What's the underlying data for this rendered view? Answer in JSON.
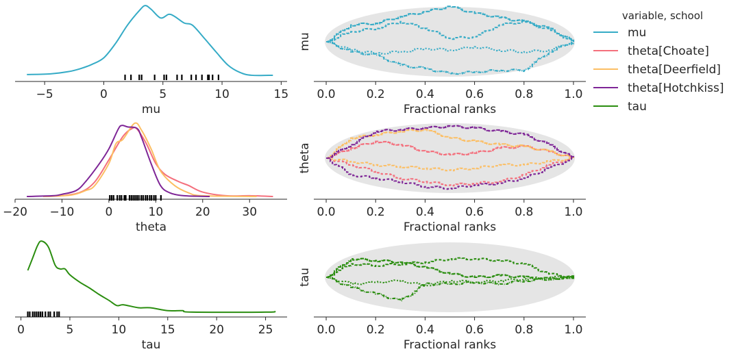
{
  "chart_data": [
    {
      "type": "line",
      "subtype": "kde",
      "xlabel": "mu",
      "xlim": [
        -7.5,
        15.5
      ],
      "xticks": [
        -5,
        0,
        5,
        10,
        15
      ],
      "xtick_labels": [
        "−5",
        "0",
        "5",
        "10",
        "15"
      ],
      "series": [
        {
          "name": "mu",
          "color": "#35abc6",
          "points": [
            [
              -6.5,
              0.02
            ],
            [
              -4.5,
              0.03
            ],
            [
              -3,
              0.06
            ],
            [
              -2,
              0.1
            ],
            [
              -1,
              0.16
            ],
            [
              0,
              0.25
            ],
            [
              1,
              0.45
            ],
            [
              2,
              0.7
            ],
            [
              3,
              0.9
            ],
            [
              3.5,
              0.97
            ],
            [
              4,
              0.92
            ],
            [
              4.8,
              0.8
            ],
            [
              5.5,
              0.85
            ],
            [
              6,
              0.82
            ],
            [
              6.8,
              0.73
            ],
            [
              7.5,
              0.7
            ],
            [
              8.5,
              0.52
            ],
            [
              9.5,
              0.33
            ],
            [
              10.5,
              0.15
            ],
            [
              11.5,
              0.05
            ],
            [
              12.5,
              0.01
            ],
            [
              14.3,
              0.01
            ]
          ]
        }
      ],
      "rug": [
        1.8,
        2.3,
        3.0,
        3.2,
        4.3,
        5.1,
        5.3,
        6.2,
        6.6,
        7.4,
        7.8,
        8.3,
        8.8,
        8.9,
        9.2,
        9.7
      ]
    },
    {
      "type": "line",
      "subtype": "kde",
      "xlabel": "theta",
      "xlim": [
        -20,
        38
      ],
      "xticks": [
        -20,
        -10,
        0,
        10,
        20,
        30
      ],
      "xtick_labels": [
        "−20",
        "−10",
        "0",
        "10",
        "20",
        "30"
      ],
      "series": [
        {
          "name": "theta[Choate]",
          "color": "#f46f7c",
          "points": [
            [
              -14,
              0
            ],
            [
              -10,
              0.01
            ],
            [
              -6,
              0.06
            ],
            [
              -3,
              0.2
            ],
            [
              0,
              0.5
            ],
            [
              3,
              0.82
            ],
            [
              5,
              0.93
            ],
            [
              6,
              0.92
            ],
            [
              8,
              0.72
            ],
            [
              10,
              0.45
            ],
            [
              12,
              0.3
            ],
            [
              15,
              0.2
            ],
            [
              17,
              0.15
            ],
            [
              20,
              0.06
            ],
            [
              25,
              0.01
            ],
            [
              30,
              0.01
            ],
            [
              35,
              0
            ]
          ]
        },
        {
          "name": "theta[Deerfield]",
          "color": "#fcbe63",
          "points": [
            [
              -14,
              0
            ],
            [
              -8,
              0.02
            ],
            [
              -5,
              0.08
            ],
            [
              -3,
              0.15
            ],
            [
              0,
              0.45
            ],
            [
              1.5,
              0.72
            ],
            [
              3,
              0.78
            ],
            [
              5.5,
              1.0
            ],
            [
              7,
              0.9
            ],
            [
              9,
              0.65
            ],
            [
              11,
              0.35
            ],
            [
              14,
              0.15
            ],
            [
              17,
              0.05
            ],
            [
              20,
              0.01
            ],
            [
              31.5,
              0
            ]
          ]
        },
        {
          "name": "theta[Hotchkiss]",
          "color": "#7e2596",
          "points": [
            [
              -17.5,
              0
            ],
            [
              -12,
              0.01
            ],
            [
              -10,
              0.03
            ],
            [
              -7,
              0.08
            ],
            [
              -5,
              0.2
            ],
            [
              -2,
              0.45
            ],
            [
              0,
              0.65
            ],
            [
              2,
              0.92
            ],
            [
              2.8,
              0.97
            ],
            [
              4,
              0.95
            ],
            [
              6,
              0.93
            ],
            [
              7,
              0.8
            ],
            [
              9,
              0.45
            ],
            [
              11,
              0.15
            ],
            [
              13,
              0.05
            ],
            [
              16,
              0.01
            ],
            [
              21.5,
              0
            ]
          ]
        }
      ],
      "rug": [
        0.2,
        0.6,
        1.0,
        1.8,
        2.3,
        2.7,
        3.3,
        3.6,
        4.4,
        4.8,
        5.2,
        5.6,
        6.0,
        6.4,
        6.9,
        7.3,
        7.8,
        8.2,
        8.7,
        9.1,
        9.6,
        10.0,
        11.1
      ]
    },
    {
      "type": "line",
      "subtype": "kde",
      "xlabel": "tau",
      "xlim": [
        -0.6,
        27.2
      ],
      "xticks": [
        0,
        5,
        10,
        15,
        20,
        25
      ],
      "xtick_labels": [
        "0",
        "5",
        "10",
        "15",
        "20",
        "25"
      ],
      "series": [
        {
          "name": "tau",
          "color": "#2a8d0f",
          "points": [
            [
              0.7,
              0.58
            ],
            [
              1.2,
              0.75
            ],
            [
              1.7,
              0.92
            ],
            [
              2.1,
              0.98
            ],
            [
              2.8,
              0.9
            ],
            [
              3.5,
              0.65
            ],
            [
              4,
              0.6
            ],
            [
              4.5,
              0.6
            ],
            [
              5,
              0.52
            ],
            [
              6,
              0.42
            ],
            [
              7,
              0.34
            ],
            [
              8,
              0.25
            ],
            [
              9,
              0.17
            ],
            [
              9.8,
              0.1
            ],
            [
              10.5,
              0.11
            ],
            [
              12,
              0.07
            ],
            [
              13.2,
              0.07
            ],
            [
              15,
              0.03
            ],
            [
              16.5,
              0.03
            ],
            [
              17.5,
              0.01
            ],
            [
              25,
              0.01
            ],
            [
              26,
              0.02
            ]
          ]
        }
      ],
      "rug": [
        0.7,
        0.9,
        1.2,
        1.4,
        1.6,
        1.8,
        2.0,
        2.2,
        2.5,
        2.8,
        3.0,
        3.4,
        3.7,
        3.9
      ]
    },
    {
      "type": "line",
      "subtype": "rank_ecdf",
      "xlabel": "Fractional ranks",
      "ylabel": "mu",
      "xlim": [
        -0.05,
        1.05
      ],
      "xticks": [
        0,
        0.2,
        0.4,
        0.6,
        0.8,
        1.0
      ],
      "xtick_labels": [
        "0.0",
        "0.2",
        "0.4",
        "0.6",
        "0.8",
        "1.0"
      ],
      "x": [
        0,
        0.1,
        0.2,
        0.3,
        0.4,
        0.5,
        0.6,
        0.7,
        0.8,
        0.9,
        1.0
      ],
      "series": [
        {
          "name": "mu",
          "color": "#35abc6",
          "chains": [
            [
              0,
              0.5,
              0.55,
              0.75,
              0.9,
              1.05,
              0.85,
              0.72,
              0.6,
              0.4,
              0
            ],
            [
              0,
              0.3,
              0.4,
              0.6,
              0.4,
              0.1,
              0.15,
              0.5,
              0.6,
              0.35,
              0
            ],
            [
              0,
              -0.25,
              -0.35,
              -0.3,
              -0.2,
              -0.25,
              -0.15,
              -0.25,
              -0.3,
              -0.25,
              0
            ],
            [
              0,
              -0.3,
              -0.4,
              -0.7,
              -0.8,
              -0.95,
              -0.9,
              -0.85,
              -0.85,
              -0.3,
              0
            ]
          ]
        }
      ]
    },
    {
      "type": "line",
      "subtype": "rank_ecdf",
      "xlabel": "Fractional ranks",
      "ylabel": "theta",
      "xlim": [
        -0.05,
        1.05
      ],
      "xticks": [
        0,
        0.2,
        0.4,
        0.6,
        0.8,
        1.0
      ],
      "xtick_labels": [
        "0.0",
        "0.2",
        "0.4",
        "0.6",
        "0.8",
        "1.0"
      ],
      "x": [
        0,
        0.1,
        0.2,
        0.3,
        0.4,
        0.5,
        0.6,
        0.7,
        0.8,
        0.9,
        1.0
      ],
      "series": [
        {
          "name": "theta[Choate]",
          "color": "#f46f7c",
          "chains": [
            [
              0,
              0.3,
              0.5,
              0.4,
              0.2,
              0.1,
              0.15,
              0.3,
              0.35,
              0.2,
              0
            ],
            [
              0,
              -0.2,
              -0.4,
              -0.6,
              -0.7,
              -0.8,
              -0.75,
              -0.7,
              -0.5,
              -0.2,
              0
            ]
          ]
        },
        {
          "name": "theta[Deerfield]",
          "color": "#fcbe63",
          "chains": [
            [
              0,
              0.6,
              0.7,
              0.8,
              0.85,
              0.6,
              0.5,
              0.4,
              0.35,
              0.2,
              0
            ],
            [
              0,
              -0.1,
              -0.2,
              -0.25,
              -0.3,
              -0.35,
              -0.3,
              -0.2,
              -0.2,
              -0.1,
              0
            ]
          ]
        },
        {
          "name": "theta[Hotchkiss]",
          "color": "#7e2596",
          "chains": [
            [
              0,
              0.4,
              0.8,
              0.85,
              0.9,
              0.95,
              0.9,
              0.8,
              0.7,
              0.4,
              0
            ],
            [
              0,
              -0.5,
              -0.6,
              -0.7,
              -0.85,
              -0.9,
              -0.8,
              -0.75,
              -0.6,
              -0.3,
              0
            ]
          ]
        }
      ]
    },
    {
      "type": "line",
      "subtype": "rank_ecdf",
      "xlabel": "Fractional ranks",
      "ylabel": "tau",
      "xlim": [
        -0.05,
        1.05
      ],
      "xticks": [
        0,
        0.2,
        0.4,
        0.6,
        0.8,
        1.0
      ],
      "xtick_labels": [
        "0.0",
        "0.2",
        "0.4",
        "0.6",
        "0.8",
        "1.0"
      ],
      "x": [
        0,
        0.1,
        0.2,
        0.3,
        0.4,
        0.5,
        0.6,
        0.7,
        0.8,
        0.9,
        1.0
      ],
      "series": [
        {
          "name": "tau",
          "color": "#2a8d0f",
          "chains": [
            [
              0,
              0.55,
              0.5,
              0.45,
              0.3,
              0.1,
              0.0,
              0.05,
              0.0,
              -0.05,
              0
            ],
            [
              0,
              0.4,
              0.35,
              0.4,
              0.45,
              0.55,
              0.55,
              0.5,
              0.4,
              0.1,
              0
            ],
            [
              0,
              -0.2,
              -0.15,
              -0.1,
              -0.25,
              -0.1,
              -0.15,
              -0.1,
              -0.05,
              0,
              0
            ],
            [
              0,
              -0.3,
              -0.5,
              -0.7,
              -0.2,
              -0.2,
              -0.15,
              -0.2,
              -0.1,
              -0.05,
              0
            ]
          ]
        }
      ]
    }
  ],
  "legend": {
    "title": "variable, school",
    "placement": "right",
    "entries": [
      {
        "label": "mu",
        "color": "#35abc6"
      },
      {
        "label": "theta[Choate]",
        "color": "#f46f7c"
      },
      {
        "label": "theta[Deerfield]",
        "color": "#fcbe63"
      },
      {
        "label": "theta[Hotchkiss]",
        "color": "#7e2596"
      },
      {
        "label": "tau",
        "color": "#2a8d0f"
      }
    ]
  },
  "envelope_color": "#e5e5e5"
}
